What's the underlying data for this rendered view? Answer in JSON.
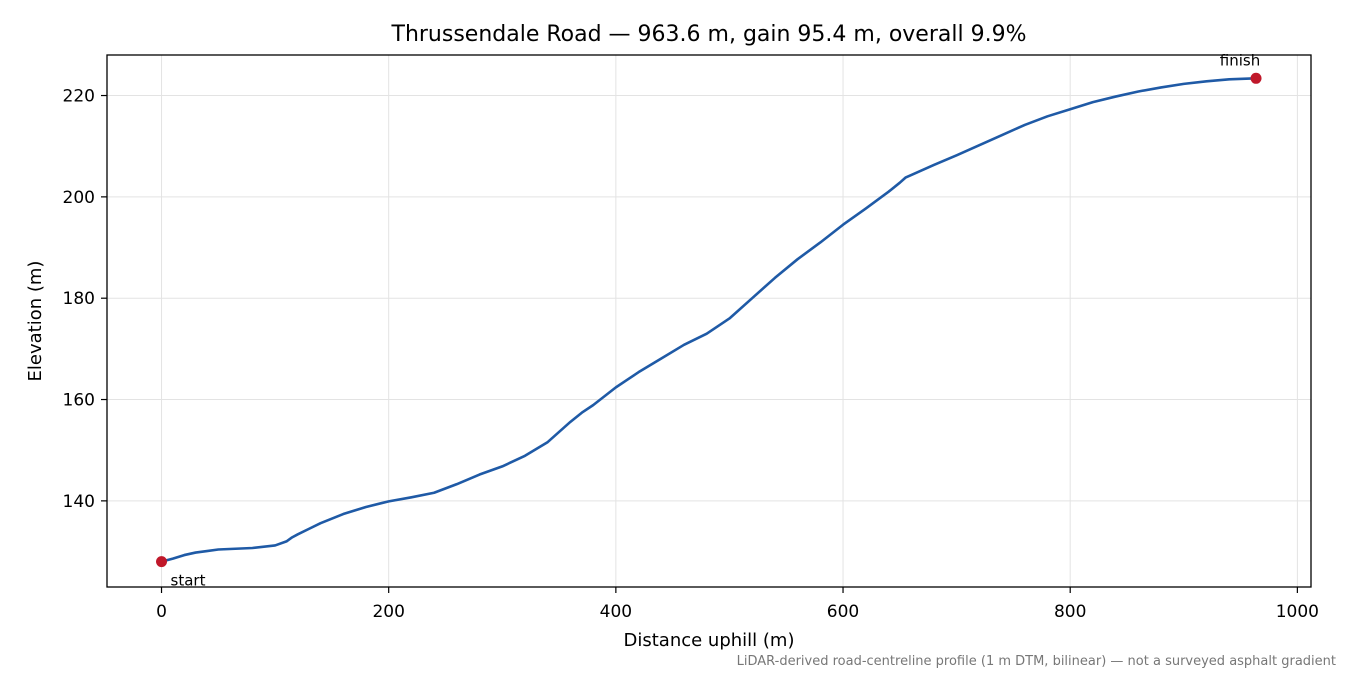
{
  "chart_data": {
    "type": "line",
    "title": "Thrussendale Road — 963.6 m, gain 95.4 m, overall 9.9%",
    "xlabel": "Distance uphill (m)",
    "ylabel": "Elevation (m)",
    "xlim": [
      -48,
      1012
    ],
    "ylim": [
      123,
      228
    ],
    "xticks": [
      0,
      200,
      400,
      600,
      800,
      1000
    ],
    "yticks": [
      140,
      160,
      180,
      200,
      220
    ],
    "grid": true,
    "series": [
      {
        "color": "#1f5aa6",
        "x": [
          0,
          10,
          20,
          30,
          40,
          50,
          60,
          80,
          100,
          110,
          115,
          120,
          130,
          140,
          160,
          180,
          200,
          220,
          240,
          260,
          280,
          300,
          320,
          340,
          360,
          370,
          380,
          400,
          420,
          440,
          460,
          480,
          490,
          500,
          520,
          540,
          560,
          580,
          600,
          620,
          640,
          650,
          655,
          660,
          680,
          700,
          720,
          740,
          760,
          780,
          800,
          820,
          840,
          860,
          880,
          900,
          920,
          940,
          963.6
        ],
        "y": [
          128.0,
          128.6,
          129.3,
          129.8,
          130.1,
          130.4,
          130.5,
          130.7,
          131.2,
          132.0,
          132.8,
          133.4,
          134.5,
          135.6,
          137.4,
          138.8,
          139.9,
          140.7,
          141.6,
          143.3,
          145.2,
          146.8,
          148.9,
          151.6,
          155.6,
          157.4,
          158.9,
          162.4,
          165.4,
          168.1,
          170.8,
          173.0,
          174.5,
          176.0,
          180.0,
          184.0,
          187.7,
          191.0,
          194.5,
          197.7,
          201.0,
          202.8,
          203.8,
          204.3,
          206.3,
          208.2,
          210.2,
          212.2,
          214.2,
          215.9,
          217.3,
          218.7,
          219.8,
          220.8,
          221.6,
          222.3,
          222.8,
          223.2,
          223.4
        ]
      }
    ],
    "markers": [
      {
        "name": "start",
        "x": 0,
        "y": 128.0,
        "color": "#c0182a"
      },
      {
        "name": "finish",
        "x": 963.6,
        "y": 223.4,
        "color": "#c0182a"
      }
    ],
    "annotations": {
      "start": "start",
      "finish": "finish"
    },
    "footnote": "LiDAR-derived road-centreline profile (1 m DTM, bilinear) — not a surveyed asphalt gradient"
  }
}
